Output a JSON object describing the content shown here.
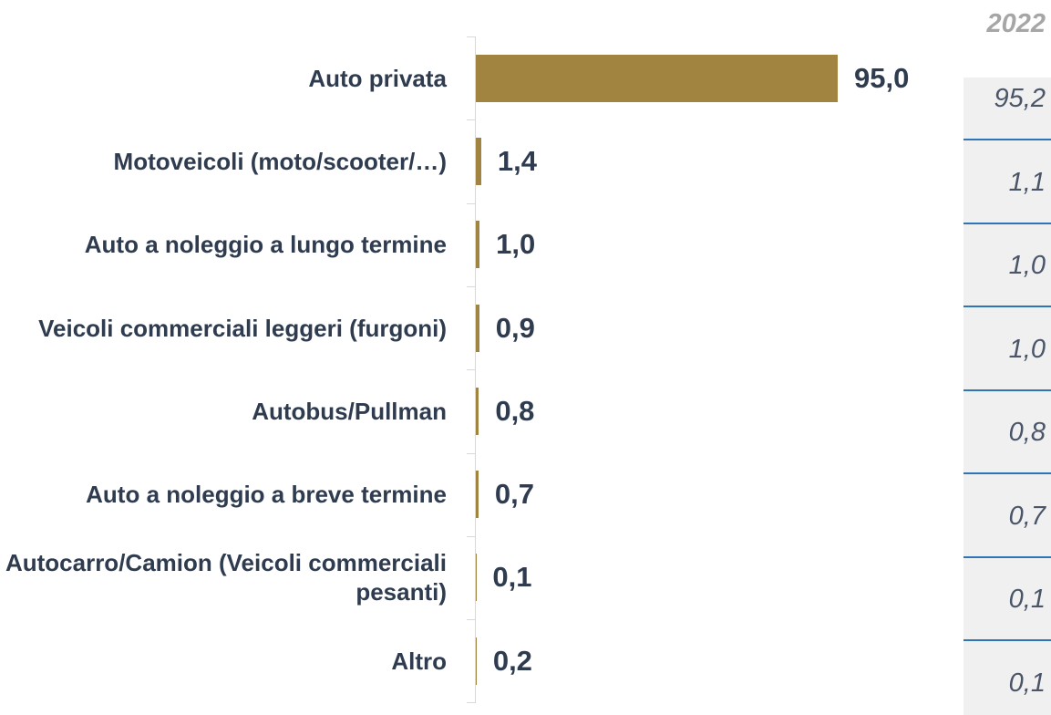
{
  "chart_data": {
    "type": "bar",
    "orientation": "horizontal",
    "categories": [
      "Auto privata",
      "Motoveicoli (moto/scooter/…)",
      "Auto a noleggio a lungo termine",
      "Veicoli commerciali leggeri (furgoni)",
      "Autobus/Pullman",
      "Auto a noleggio a breve termine",
      "Autocarro/Camion (Veicoli commerciali pesanti)",
      "Altro"
    ],
    "values": [
      95.0,
      1.4,
      1.0,
      0.9,
      0.8,
      0.7,
      0.1,
      0.2
    ],
    "value_labels": [
      "95,0",
      "1,4",
      "1,0",
      "0,9",
      "0,8",
      "0,7",
      "0,1",
      "0,2"
    ],
    "color": "#a08440",
    "comparison": {
      "name": "2022",
      "values": [
        95.2,
        1.1,
        1.0,
        1.0,
        0.8,
        0.7,
        0.1,
        0.1
      ],
      "value_labels": [
        "95,2",
        "1,1",
        "1,0",
        "1,0",
        "0,8",
        "0,7",
        "0,1",
        "0,1"
      ]
    }
  }
}
